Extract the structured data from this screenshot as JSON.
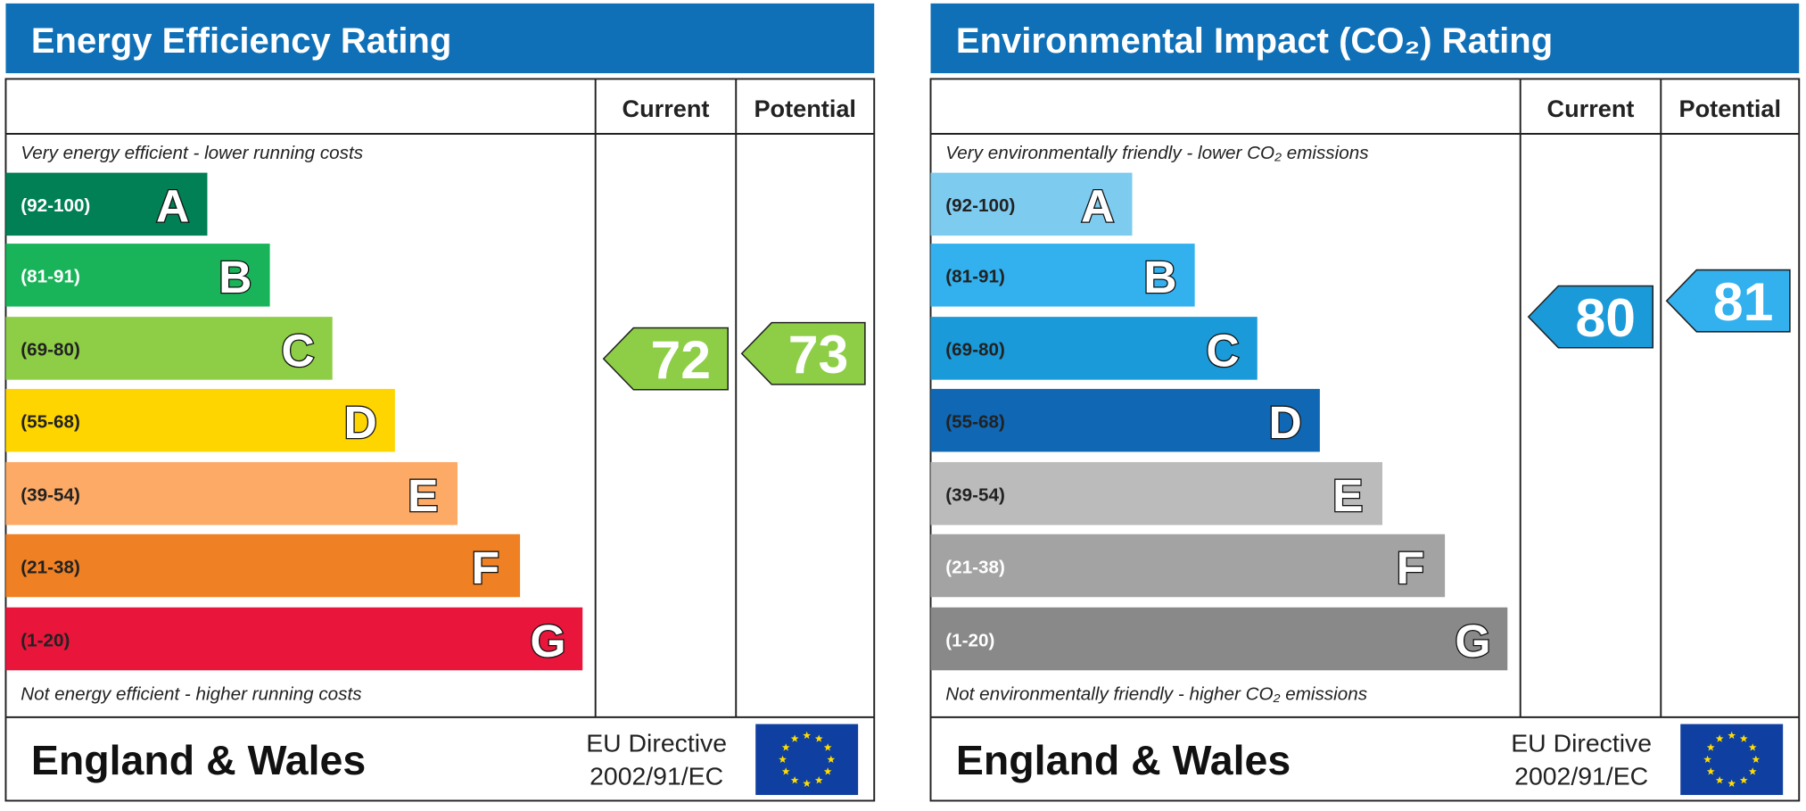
{
  "panels": [
    {
      "title": "Energy Efficiency Rating",
      "header": {
        "current": "Current",
        "potential": "Potential"
      },
      "top_note": "Very energy efficient - lower running costs",
      "bottom_note": "Not energy efficient - higher running costs",
      "bands": [
        {
          "range": "(92-100)",
          "letter": "A",
          "color": "#008054",
          "text_color": "#ffffff"
        },
        {
          "range": "(81-91)",
          "letter": "B",
          "color": "#19b459",
          "text_color": "#ffffff"
        },
        {
          "range": "(69-80)",
          "letter": "C",
          "color": "#8dce46",
          "text_color": "#222222"
        },
        {
          "range": "(55-68)",
          "letter": "D",
          "color": "#ffd500",
          "text_color": "#222222"
        },
        {
          "range": "(39-54)",
          "letter": "E",
          "color": "#fcaa65",
          "text_color": "#222222"
        },
        {
          "range": "(21-38)",
          "letter": "F",
          "color": "#ef8023",
          "text_color": "#222222"
        },
        {
          "range": "(1-20)",
          "letter": "G",
          "color": "#e9153b",
          "text_color": "#222222"
        }
      ],
      "current": 72,
      "potential": 73,
      "footer": {
        "region": "England & Wales",
        "directive": [
          "EU Directive",
          "2002/91/EC"
        ]
      }
    },
    {
      "title": "Environmental Impact (CO₂) Rating",
      "header": {
        "current": "Current",
        "potential": "Potential"
      },
      "top_note": "Very environmentally friendly - lower CO₂ emissions",
      "bottom_note": "Not environmentally friendly - higher CO₂ emissions",
      "bands": [
        {
          "range": "(92-100)",
          "letter": "A",
          "color": "#7ecbf0",
          "text_color": "#222222"
        },
        {
          "range": "(81-91)",
          "letter": "B",
          "color": "#32b1ee",
          "text_color": "#222222"
        },
        {
          "range": "(69-80)",
          "letter": "C",
          "color": "#1a9ad8",
          "text_color": "#222222"
        },
        {
          "range": "(55-68)",
          "letter": "D",
          "color": "#1067b4",
          "text_color": "#222222"
        },
        {
          "range": "(39-54)",
          "letter": "E",
          "color": "#bbbbbb",
          "text_color": "#222222"
        },
        {
          "range": "(21-38)",
          "letter": "F",
          "color": "#a3a3a3",
          "text_color": "#ffffff"
        },
        {
          "range": "(1-20)",
          "letter": "G",
          "color": "#898989",
          "text_color": "#ffffff"
        }
      ],
      "current": 80,
      "potential": 81,
      "footer": {
        "region": "England & Wales",
        "directive": [
          "EU Directive",
          "2002/91/EC"
        ]
      }
    }
  ]
}
